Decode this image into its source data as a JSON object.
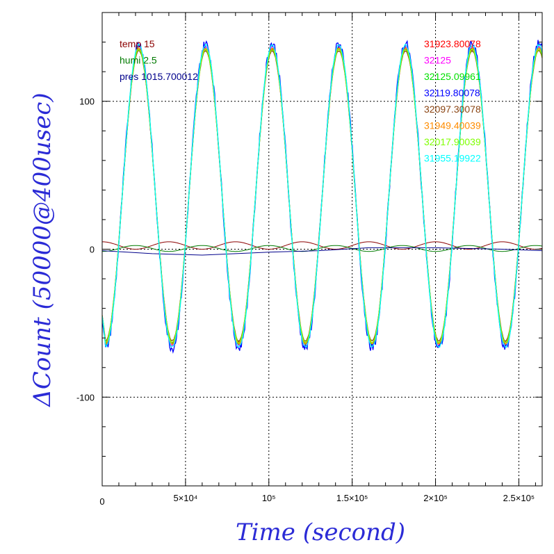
{
  "chart_data": {
    "type": "line",
    "xlabel": "Time (second)",
    "ylabel": "ΔCount (50000@400usec)",
    "xlim": [
      0,
      264000
    ],
    "ylim": [
      -160,
      160
    ],
    "grid": true,
    "x_ticks": [
      {
        "value": 0,
        "label": "0"
      },
      {
        "value": 50000,
        "label": "5×10⁴"
      },
      {
        "value": 100000,
        "label": "10⁵"
      },
      {
        "value": 150000,
        "label": "1.5×10⁵"
      },
      {
        "value": 200000,
        "label": "2×10⁵"
      },
      {
        "value": 250000,
        "label": "2.5×10⁵"
      }
    ],
    "y_ticks": [
      {
        "value": 100,
        "label": "100"
      },
      {
        "value": 0,
        "label": "0"
      },
      {
        "value": -100,
        "label": "-100"
      }
    ],
    "legend_left": [
      {
        "text": "temp 15",
        "color": "#8b0000"
      },
      {
        "text": "humi 2.5",
        "color": "#007a00"
      },
      {
        "text": "pres 1015.700012",
        "color": "#00008b"
      }
    ],
    "legend_right": [
      {
        "text": "31923.80078",
        "color": "#ff0000"
      },
      {
        "text": "32125",
        "color": "#ff00ff"
      },
      {
        "text": "32125.09961",
        "color": "#00e000"
      },
      {
        "text": "32119.80078",
        "color": "#0000ff"
      },
      {
        "text": "32097.30078",
        "color": "#8b4513"
      },
      {
        "text": "31949.40039",
        "color": "#ff8c00"
      },
      {
        "text": "32017.90039",
        "color": "#7fff00"
      },
      {
        "text": "31955.19922",
        "color": "#00ffff"
      }
    ],
    "oscillation": {
      "period": 40000,
      "peak_time": 22000,
      "center": 36,
      "amplitude": 99
    },
    "series": [
      {
        "name": "31923.80078",
        "color": "#ff0000",
        "peak_scale": 1.0,
        "noise": 0.4
      },
      {
        "name": "32125",
        "color": "#ff00ff",
        "peak_scale": 1.02,
        "noise": 0.5
      },
      {
        "name": "32125.09961",
        "color": "#00e000",
        "peak_scale": 1.01,
        "noise": 0.4
      },
      {
        "name": "32119.80078",
        "color": "#0000ff",
        "peak_scale": 1.04,
        "noise": 3.0
      },
      {
        "name": "32097.30078",
        "color": "#8b4513",
        "peak_scale": 0.99,
        "noise": 0.4
      },
      {
        "name": "31949.40039",
        "color": "#ff8c00",
        "peak_scale": 1.01,
        "noise": 0.5
      },
      {
        "name": "32017.90039",
        "color": "#7fff00",
        "peak_scale": 1.0,
        "noise": 0.4
      },
      {
        "name": "31955.19922",
        "color": "#00ffff",
        "peak_scale": 1.03,
        "noise": 0.6
      }
    ],
    "environment_series": [
      {
        "name": "temp 15",
        "color": "#8b0000",
        "type": "wave",
        "offset": 2.5,
        "amplitude": 2.5,
        "period": 40000,
        "phase": 0
      },
      {
        "name": "humi 2.5",
        "color": "#007a00",
        "type": "wave",
        "offset": 0.5,
        "amplitude": 2,
        "period": 40000,
        "phase": 20000
      },
      {
        "name": "pres 1015.700012",
        "color": "#00008b",
        "type": "drift",
        "points": [
          [
            0,
            -1
          ],
          [
            30000,
            -3
          ],
          [
            60000,
            -4
          ],
          [
            100000,
            -2
          ],
          [
            130000,
            -1
          ],
          [
            160000,
            1
          ],
          [
            200000,
            1
          ],
          [
            240000,
            0
          ],
          [
            264000,
            -1
          ]
        ]
      }
    ]
  }
}
